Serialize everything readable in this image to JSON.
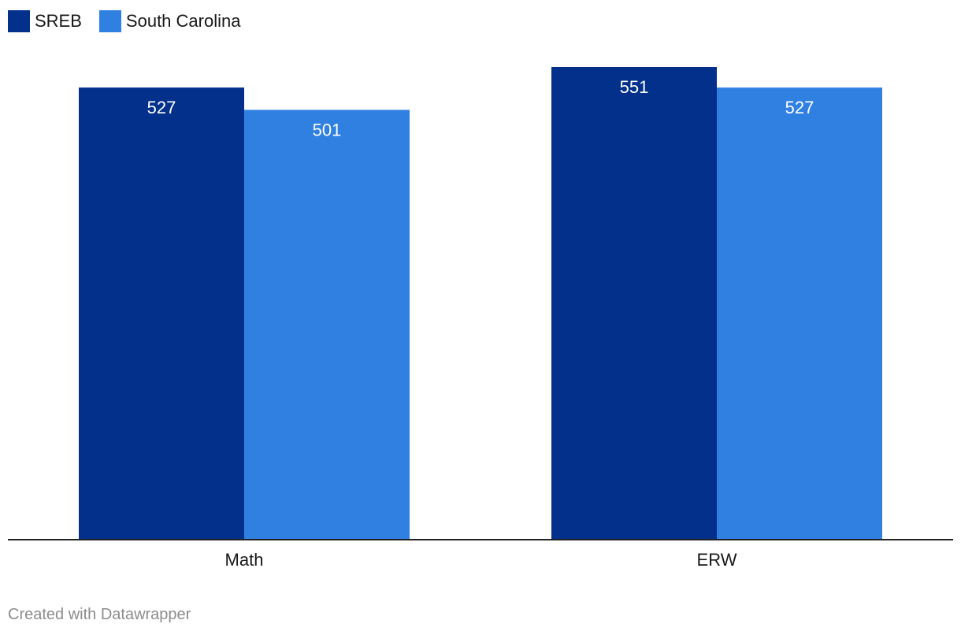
{
  "legend": {
    "items": [
      {
        "label": "SREB",
        "color": "#02308a"
      },
      {
        "label": "South Carolina",
        "color": "#3080e2"
      }
    ]
  },
  "chart_data": {
    "type": "bar",
    "categories": [
      "Math",
      "ERW"
    ],
    "series": [
      {
        "name": "SREB",
        "values": [
          527,
          551
        ],
        "color": "#02308a"
      },
      {
        "name": "South Carolina",
        "values": [
          501,
          527
        ],
        "color": "#3080e2"
      }
    ],
    "ylim": [
      0,
      551
    ],
    "xlabel": "",
    "ylabel": "",
    "grid": false,
    "legend_position": "top-left"
  },
  "footer": {
    "credit": "Created with Datawrapper"
  }
}
